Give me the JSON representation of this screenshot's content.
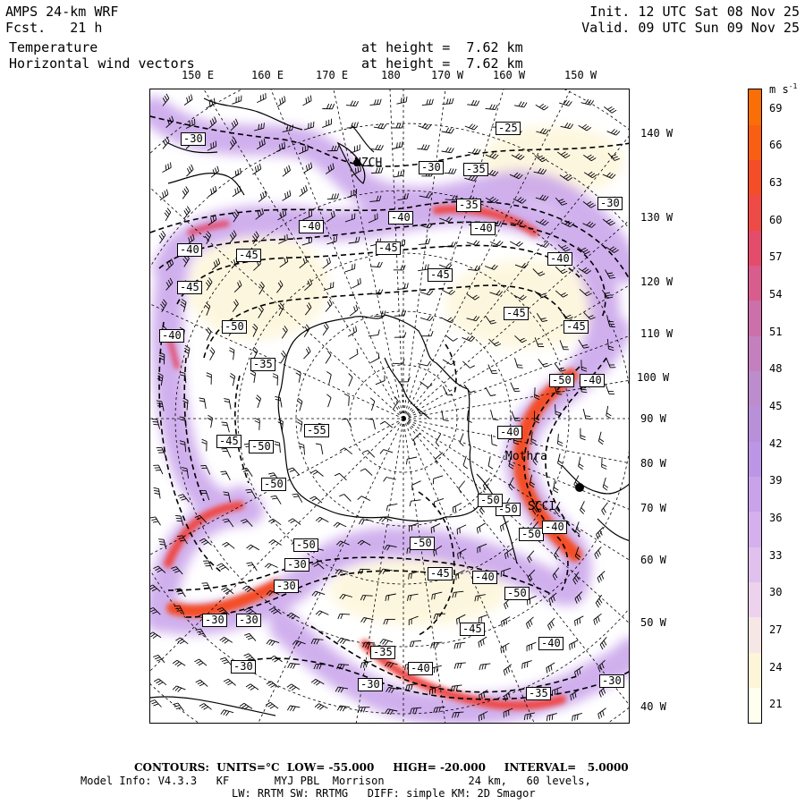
{
  "header": {
    "model": "AMPS 24-km WRF",
    "fcst": "Fcst.   21 h",
    "field1": "Temperature",
    "field2": "Horizontal wind vectors",
    "height1": "at height =  7.62 km",
    "height2": "at height =  7.62 km",
    "init": "Init. 12 UTC Sat 08 Nov 25",
    "valid": "Valid. 09 UTC Sun 09 Nov 25"
  },
  "top_ticks": [
    "150 E",
    "160 E",
    "170 E",
    "180",
    "170 W",
    "160 W",
    "150 W"
  ],
  "right_ticks": [
    "140 W",
    "130 W",
    "120 W",
    "110 W",
    "100 W",
    "90 W",
    "80 W",
    "70 W",
    "60 W",
    "50 W",
    "40 W"
  ],
  "contour_labels": [
    "-30",
    "-25",
    "-30",
    "-40",
    "-40",
    "-35",
    "-40",
    "-40",
    "-45",
    "-45",
    "-40",
    "-45",
    "-45",
    "-45",
    "-50",
    "-45",
    "-40",
    "-50",
    "-35",
    "-40",
    "-55",
    "-45",
    "-50",
    "-40",
    "-50",
    "-50",
    "-50",
    "-50",
    "-50",
    "-45",
    "-50",
    "-40",
    "-45",
    "-50",
    "-30",
    "-30",
    "-30",
    "-40",
    "-35",
    "-30",
    "-40",
    "-30",
    "-35",
    "-30",
    "-30",
    "-40",
    "-30",
    "-35"
  ],
  "place_labels": [
    "NZCH",
    "Mothra",
    "SCCI"
  ],
  "colorbar": {
    "unit": "m s",
    "unit_sup": "-1",
    "labels": [
      "69",
      "66",
      "63",
      "60",
      "57",
      "54",
      "51",
      "48",
      "45",
      "42",
      "39",
      "36",
      "33",
      "30",
      "27",
      "24",
      "21"
    ],
    "min": 19.5,
    "max": 70.5,
    "colors": [
      "#fffff0",
      "#fdf5d8",
      "#f7e6e6",
      "#ecd2ec",
      "#e0c0ec",
      "#d4b0ec",
      "#c8a2ea",
      "#bc96e6",
      "#b890da",
      "#bc8ccc",
      "#c480be",
      "#cc70aa",
      "#d85c8c",
      "#e44c6c",
      "#ee4a46",
      "#f44e28",
      "#f85e14",
      "#fa6e08"
    ]
  },
  "footer": {
    "line1": "CONTOURS:  UNITS=°C  LOW= -55.000     HIGH= -20.000     INTERVAL=   5.0000",
    "line2": "Model Info: V4.3.3   KF       MYJ PBL  Morrison             24 km,   60 levels,",
    "line3": "LW: RRTM SW: RRTMG   DIFF: simple KM: 2D Smagor"
  }
}
